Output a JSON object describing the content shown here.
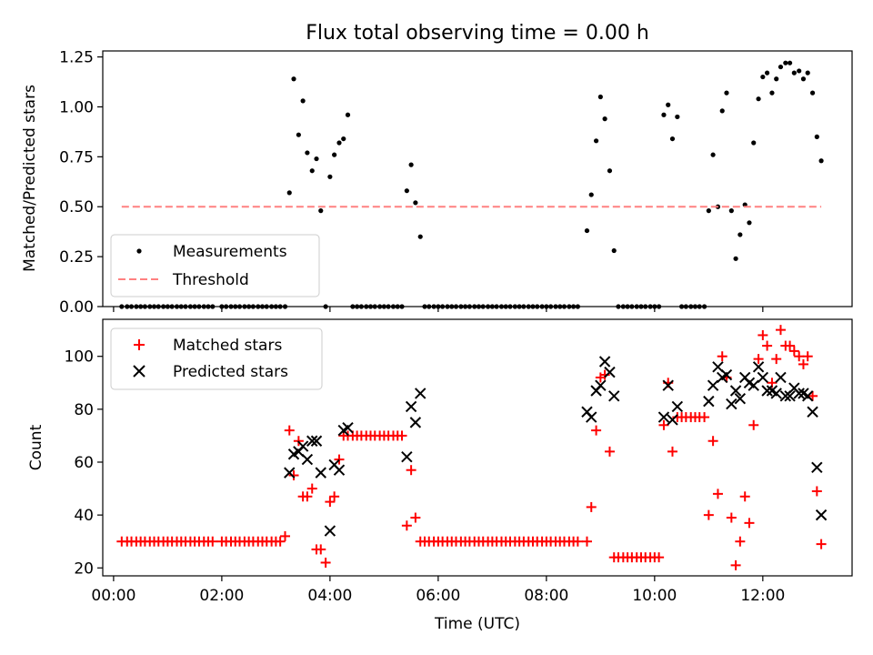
{
  "chart_data": [
    {
      "type": "scatter",
      "title": "Flux total observing time = 0.00 h",
      "xlabel": "",
      "ylabel": "Matched/Predicted stars",
      "xlim": [
        -0.2,
        13.65
      ],
      "ylim": [
        0,
        1.28
      ],
      "yticks": [
        0,
        0.25,
        0.5,
        0.75,
        1.0,
        1.25
      ],
      "ytick_labels": [
        "0.00",
        "0.25",
        "0.50",
        "0.75",
        "1.00",
        "1.25"
      ],
      "legend_position": "lower-left",
      "series": [
        {
          "name": "Measurements",
          "marker": "dot",
          "color": "#000000",
          "x": [
            0.15,
            0.25,
            0.33,
            0.42,
            0.5,
            0.58,
            0.67,
            0.75,
            0.83,
            0.92,
            1.0,
            1.08,
            1.17,
            1.25,
            1.33,
            1.42,
            1.5,
            1.58,
            1.67,
            1.75,
            1.83,
            2.0,
            2.08,
            2.17,
            2.25,
            2.33,
            2.42,
            2.5,
            2.58,
            2.67,
            2.75,
            2.83,
            2.92,
            3.0,
            3.08,
            3.17,
            3.25,
            3.33,
            3.42,
            3.5,
            3.58,
            3.67,
            3.75,
            3.83,
            3.92,
            4.0,
            4.08,
            4.17,
            4.25,
            4.33,
            4.42,
            4.5,
            4.58,
            4.67,
            4.75,
            4.83,
            4.92,
            5.0,
            5.08,
            5.17,
            5.25,
            5.33,
            5.42,
            5.5,
            5.58,
            5.67,
            5.75,
            5.83,
            5.92,
            6.0,
            6.08,
            6.17,
            6.25,
            6.33,
            6.42,
            6.5,
            6.58,
            6.67,
            6.75,
            6.83,
            6.92,
            7.0,
            7.08,
            7.17,
            7.25,
            7.33,
            7.42,
            7.5,
            7.58,
            7.67,
            7.75,
            7.83,
            7.92,
            8.0,
            8.08,
            8.17,
            8.25,
            8.33,
            8.42,
            8.5,
            8.58,
            8.75,
            8.83,
            8.92,
            9.0,
            9.08,
            9.17,
            9.25,
            9.33,
            9.42,
            9.5,
            9.58,
            9.67,
            9.75,
            9.83,
            9.92,
            10.0,
            10.08,
            10.17,
            10.25,
            10.33,
            10.42,
            10.5,
            10.58,
            10.67,
            10.75,
            10.83,
            10.92,
            11.0,
            11.08,
            11.17,
            11.25,
            11.33,
            11.42,
            11.5,
            11.58,
            11.67,
            11.75,
            11.83,
            11.92,
            12.0,
            12.08,
            12.17,
            12.25,
            12.33,
            12.42,
            12.5,
            12.58,
            12.67,
            12.75,
            12.83,
            12.92,
            13.0,
            13.08
          ],
          "y": [
            0,
            0,
            0,
            0,
            0,
            0,
            0,
            0,
            0,
            0,
            0,
            0,
            0,
            0,
            0,
            0,
            0,
            0,
            0,
            0,
            0,
            0,
            0,
            0,
            0,
            0,
            0,
            0,
            0,
            0,
            0,
            0,
            0,
            0,
            0,
            0,
            0.57,
            1.14,
            0.86,
            1.03,
            0.77,
            0.68,
            0.74,
            0.48,
            0,
            0.65,
            0.76,
            0.82,
            0.84,
            0.96,
            0,
            0,
            0,
            0,
            0,
            0,
            0,
            0,
            0,
            0,
            0,
            0,
            0.58,
            0.71,
            0.52,
            0.35,
            0,
            0,
            0,
            0,
            0,
            0,
            0,
            0,
            0,
            0,
            0,
            0,
            0,
            0,
            0,
            0,
            0,
            0,
            0,
            0,
            0,
            0,
            0,
            0,
            0,
            0,
            0,
            0,
            0,
            0,
            0,
            0,
            0,
            0,
            0,
            0.38,
            0.56,
            0.83,
            1.05,
            0.94,
            0.68,
            0.28,
            0,
            0,
            0,
            0,
            0,
            0,
            0,
            0,
            0,
            0,
            0.96,
            1.01,
            0.84,
            0.95,
            0,
            0,
            0,
            0,
            0,
            0,
            0.48,
            0.76,
            0.5,
            0.98,
            1.07,
            0.48,
            0.24,
            0.36,
            0.51,
            0.42,
            0.82,
            1.04,
            1.15,
            1.17,
            1.07,
            1.14,
            1.2,
            1.22,
            1.22,
            1.17,
            1.18,
            1.14,
            1.17,
            1.07,
            0.85,
            0.73
          ]
        },
        {
          "name": "Threshold",
          "type": "line",
          "style": "dashed",
          "color": "#ff8080",
          "x": [
            0.15,
            13.08
          ],
          "y": [
            0.5,
            0.5
          ]
        }
      ]
    },
    {
      "type": "scatter",
      "title": "",
      "xlabel": "Time (UTC)",
      "ylabel": "Count",
      "xlim": [
        -0.2,
        13.65
      ],
      "ylim": [
        17,
        114
      ],
      "yticks": [
        20,
        40,
        60,
        80,
        100
      ],
      "ytick_labels": [
        "20",
        "40",
        "60",
        "80",
        "100"
      ],
      "xticks": [
        0,
        2,
        4,
        6,
        8,
        10,
        12
      ],
      "xtick_labels": [
        "00:00",
        "02:00",
        "04:00",
        "06:00",
        "08:00",
        "10:00",
        "12:00"
      ],
      "legend_position": "upper-left",
      "series": [
        {
          "name": "Matched stars",
          "marker": "plus",
          "color": "#ff0000",
          "x": [
            0.15,
            0.25,
            0.33,
            0.42,
            0.5,
            0.58,
            0.67,
            0.75,
            0.83,
            0.92,
            1.0,
            1.08,
            1.17,
            1.25,
            1.33,
            1.42,
            1.5,
            1.58,
            1.67,
            1.75,
            1.83,
            2.0,
            2.08,
            2.17,
            2.25,
            2.33,
            2.42,
            2.5,
            2.58,
            2.67,
            2.75,
            2.83,
            2.92,
            3.0,
            3.08,
            3.17,
            3.25,
            3.33,
            3.42,
            3.5,
            3.58,
            3.67,
            3.75,
            3.83,
            3.92,
            4.0,
            4.08,
            4.17,
            4.25,
            4.33,
            4.42,
            4.5,
            4.58,
            4.67,
            4.75,
            4.83,
            4.92,
            5.0,
            5.08,
            5.17,
            5.25,
            5.33,
            5.42,
            5.5,
            5.58,
            5.67,
            5.75,
            5.83,
            5.92,
            6.0,
            6.08,
            6.17,
            6.25,
            6.33,
            6.42,
            6.5,
            6.58,
            6.67,
            6.75,
            6.83,
            6.92,
            7.0,
            7.08,
            7.17,
            7.25,
            7.33,
            7.42,
            7.5,
            7.58,
            7.67,
            7.75,
            7.83,
            7.92,
            8.0,
            8.08,
            8.17,
            8.25,
            8.33,
            8.42,
            8.5,
            8.58,
            8.75,
            8.83,
            8.92,
            9.0,
            9.08,
            9.17,
            9.25,
            9.33,
            9.42,
            9.5,
            9.58,
            9.67,
            9.75,
            9.83,
            9.92,
            10.0,
            10.08,
            10.17,
            10.25,
            10.33,
            10.42,
            10.5,
            10.58,
            10.67,
            10.75,
            10.83,
            10.92,
            11.0,
            11.08,
            11.17,
            11.25,
            11.33,
            11.42,
            11.5,
            11.58,
            11.67,
            11.75,
            11.83,
            11.92,
            12.0,
            12.08,
            12.17,
            12.25,
            12.33,
            12.42,
            12.5,
            12.58,
            12.67,
            12.75,
            12.83,
            12.92,
            13.0,
            13.08
          ],
          "y": [
            30,
            30,
            30,
            30,
            30,
            30,
            30,
            30,
            30,
            30,
            30,
            30,
            30,
            30,
            30,
            30,
            30,
            30,
            30,
            30,
            30,
            30,
            30,
            30,
            30,
            30,
            30,
            30,
            30,
            30,
            30,
            30,
            30,
            30,
            30,
            32,
            72,
            55,
            68,
            47,
            47,
            50,
            27,
            27,
            22,
            45,
            47,
            61,
            70,
            70,
            70,
            70,
            70,
            70,
            70,
            70,
            70,
            70,
            70,
            70,
            70,
            70,
            36,
            57,
            39,
            30,
            30,
            30,
            30,
            30,
            30,
            30,
            30,
            30,
            30,
            30,
            30,
            30,
            30,
            30,
            30,
            30,
            30,
            30,
            30,
            30,
            30,
            30,
            30,
            30,
            30,
            30,
            30,
            30,
            30,
            30,
            30,
            30,
            30,
            30,
            30,
            30,
            43,
            72,
            92,
            93,
            64,
            24,
            24,
            24,
            24,
            24,
            24,
            24,
            24,
            24,
            24,
            24,
            74,
            90,
            64,
            77,
            77,
            77,
            77,
            77,
            77,
            77,
            40,
            68,
            48,
            100,
            92,
            39,
            21,
            30,
            47,
            37,
            74,
            99,
            108,
            104,
            90,
            99,
            110,
            104,
            104,
            102,
            100,
            97,
            100,
            85,
            49,
            29
          ]
        },
        {
          "name": "Predicted stars",
          "marker": "x",
          "color": "#000000",
          "x": [
            3.25,
            3.33,
            3.42,
            3.5,
            3.58,
            3.67,
            3.75,
            3.83,
            4.0,
            4.08,
            4.17,
            4.25,
            4.33,
            5.42,
            5.5,
            5.58,
            5.67,
            8.75,
            8.83,
            8.92,
            9.0,
            9.08,
            9.17,
            9.25,
            10.17,
            10.25,
            10.33,
            10.42,
            11.0,
            11.08,
            11.17,
            11.25,
            11.33,
            11.42,
            11.5,
            11.58,
            11.67,
            11.75,
            11.83,
            11.92,
            12.0,
            12.08,
            12.17,
            12.25,
            12.33,
            12.42,
            12.5,
            12.58,
            12.67,
            12.75,
            12.83,
            12.92,
            13.0,
            13.08
          ],
          "y": [
            56,
            63,
            64,
            66,
            61,
            68,
            68,
            56,
            34,
            59,
            57,
            72,
            73,
            62,
            81,
            75,
            86,
            79,
            77,
            87,
            89,
            98,
            94,
            85,
            77,
            89,
            76,
            81,
            83,
            89,
            96,
            92,
            93,
            82,
            87,
            84,
            92,
            90,
            89,
            96,
            92,
            87,
            87,
            86,
            92,
            85,
            85,
            88,
            86,
            86,
            85,
            79,
            58,
            40
          ]
        }
      ]
    }
  ]
}
